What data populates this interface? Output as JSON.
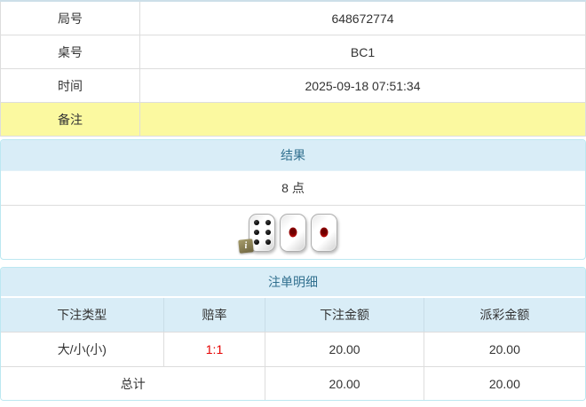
{
  "colors": {
    "text": "#333333",
    "line": "#dddddd",
    "top-strip": "#ccdfe9",
    "accent-bg": "#d9edf7",
    "accent-border": "#bce8f1",
    "accent-text": "#31708f",
    "highlight": "#fbf9a0",
    "odds-red": "#e60000"
  },
  "info_table": {
    "rows": [
      {
        "label": "局号",
        "value": "648672774"
      },
      {
        "label": "桌号",
        "value": "BC1"
      },
      {
        "label": "时间",
        "value": "2025-09-18 07:51:34"
      },
      {
        "label": "备注",
        "value": ""
      }
    ]
  },
  "result_panel": {
    "title": "结果",
    "points": "8 点",
    "dice": [
      6,
      1,
      1
    ],
    "info_badge": "i"
  },
  "bets_panel": {
    "title": "注单明细",
    "columns": [
      "下注类型",
      "赔率",
      "下注金额",
      "派彩金额"
    ],
    "rows": [
      {
        "bet_type": "大/小(小)",
        "odds": "1:1",
        "bet_amount": "20.00",
        "payout": "20.00"
      }
    ],
    "total": {
      "label": "总计",
      "bet_amount": "20.00",
      "payout": "20.00"
    }
  }
}
